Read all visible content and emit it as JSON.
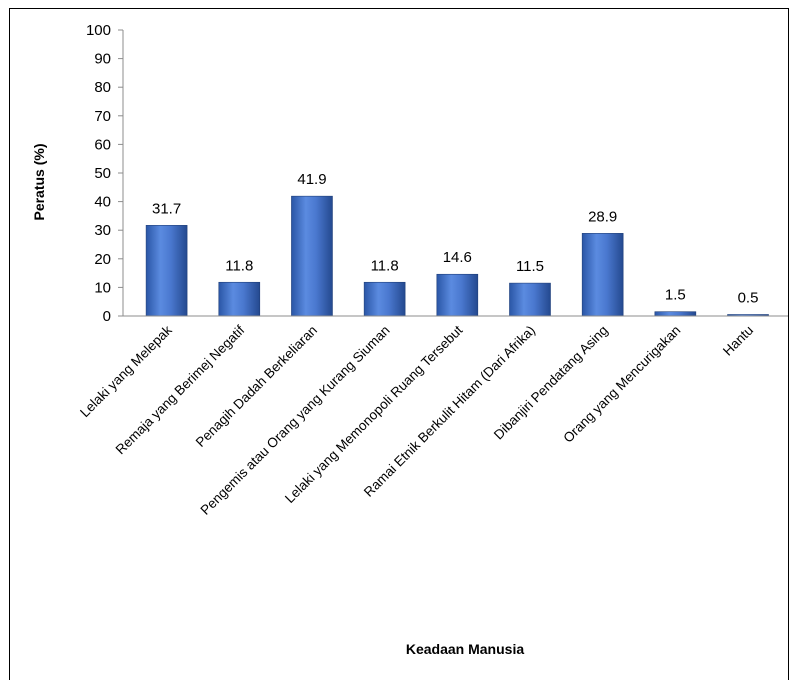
{
  "chart_data": {
    "type": "bar",
    "title": "",
    "xlabel": "Keadaan Manusia",
    "ylabel": "Peratus (%)",
    "ylim": [
      0,
      100
    ],
    "ytick_step": 10,
    "grid": false,
    "legend": "none",
    "categories": [
      "Lelaki yang Melepak",
      "Remaja yang Berimej Negatif",
      "Penagih Dadah Berkeliaran",
      "Pengemis atau Orang yang Kurang Siuman",
      "Lelaki yang Memonopoli Ruang Tersebut",
      "Ramai Etnik Berkulit Hitam (Dari Afrika)",
      "Dibanjiri Pendatang Asing",
      "Orang yang Mencurigakan",
      "Hantu"
    ],
    "values": [
      31.7,
      11.8,
      41.9,
      11.8,
      14.6,
      11.5,
      28.9,
      1.5,
      0.5
    ],
    "data_labels": [
      "31.7",
      "11.8",
      "41.9",
      "11.8",
      "14.6",
      "11.5",
      "28.9",
      "1.5",
      "0.5"
    ],
    "bar_color": "#4472C4"
  }
}
